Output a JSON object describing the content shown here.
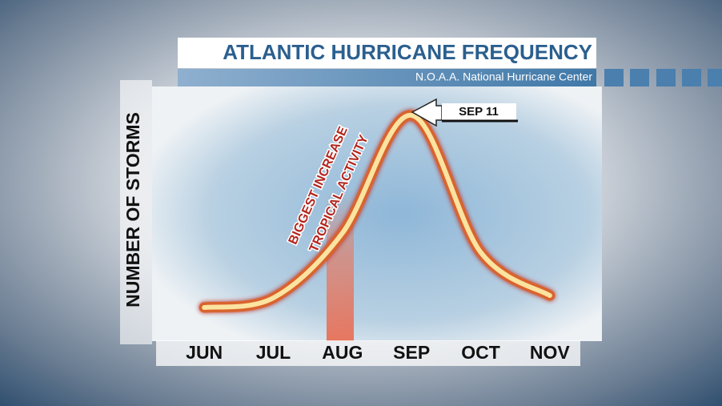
{
  "chart_data": {
    "type": "line",
    "title": "ATLANTIC HURRICANE FREQUENCY",
    "subtitle": "N.O.A.A. National Hurricane Center",
    "y_label": "NUMBER OF STORMS",
    "categories": [
      "JUN",
      "JUL",
      "AUG",
      "SEP",
      "OCT",
      "NOV"
    ],
    "values": [
      12,
      16,
      43,
      92,
      35,
      17
    ],
    "color": "#fbe3a0",
    "ylim": [
      0,
      100
    ],
    "annotations": [
      "SEP 11",
      "BIGGEST INCREASE",
      "TROPICAL ACTIVITY"
    ]
  }
}
